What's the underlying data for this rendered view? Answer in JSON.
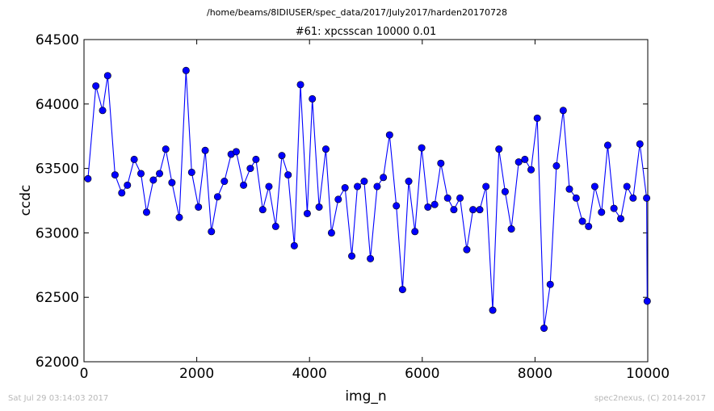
{
  "suptitle": "/home/beams/8IDIUSER/spec_data/2017/July2017/harden20170728",
  "footer_left": "Sat Jul 29 03:14:03 2017",
  "footer_right": "spec2nexus, (C) 2014-2017",
  "chart_data": {
    "type": "line",
    "title": "#61: xpcsscan 10000 0.01",
    "xlabel": "img_n",
    "ylabel": "ccdc",
    "xlim": [
      0,
      10000
    ],
    "ylim": [
      62000,
      64500
    ],
    "xticks": [
      0,
      2000,
      4000,
      6000,
      8000,
      10000
    ],
    "yticks": [
      62000,
      62500,
      63000,
      63500,
      64000,
      64500
    ],
    "grid": false,
    "line_color": "#0000ff",
    "marker": "circle",
    "series": [
      {
        "x": [
          70,
          210,
          330,
          420,
          550,
          670,
          770,
          890,
          1010,
          1110,
          1230,
          1340,
          1450,
          1560,
          1690,
          1810,
          1910,
          2030,
          2150,
          2260,
          2370,
          2490,
          2610,
          2700,
          2830,
          2950,
          3050,
          3170,
          3280,
          3400,
          3510,
          3620,
          3730,
          3840,
          3960,
          4050,
          4170,
          4290,
          4390,
          4510,
          4630,
          4750,
          4850,
          4970,
          5080,
          5200,
          5310,
          5420,
          5540,
          5650,
          5760,
          5870,
          5990,
          6100,
          6220,
          6330,
          6450,
          6560,
          6670,
          6790,
          6900,
          7020,
          7130,
          7250,
          7360,
          7470,
          7580,
          7710,
          7820,
          7930,
          8040,
          8160,
          8270,
          8380,
          8500,
          8610,
          8730,
          8840,
          8950,
          9060,
          9180,
          9290,
          9400,
          9520,
          9630,
          9740,
          9860,
          9980,
          9990
        ],
        "y": [
          63420,
          64140,
          63950,
          64220,
          63450,
          63310,
          63370,
          63570,
          63460,
          63160,
          63410,
          63460,
          63650,
          63390,
          63120,
          64260,
          63470,
          63200,
          63640,
          63010,
          63280,
          63400,
          63610,
          63630,
          63370,
          63500,
          63570,
          63180,
          63360,
          63050,
          63600,
          63450,
          62900,
          64150,
          63150,
          64040,
          63200,
          63650,
          63000,
          63260,
          63350,
          62820,
          63360,
          63400,
          62800,
          63360,
          63430,
          63760,
          63210,
          62560,
          63400,
          63010,
          63660,
          63200,
          63220,
          63540,
          63270,
          63180,
          63270,
          62870,
          63180,
          63180,
          63360,
          62400,
          63650,
          63320,
          63030,
          63550,
          63570,
          63490,
          63890,
          62260,
          62600,
          63520,
          63950,
          63340,
          63270,
          63090,
          63050,
          63360,
          63160,
          63680,
          63190,
          63110,
          63360,
          63270,
          63690,
          63270,
          62470
        ]
      }
    ]
  }
}
